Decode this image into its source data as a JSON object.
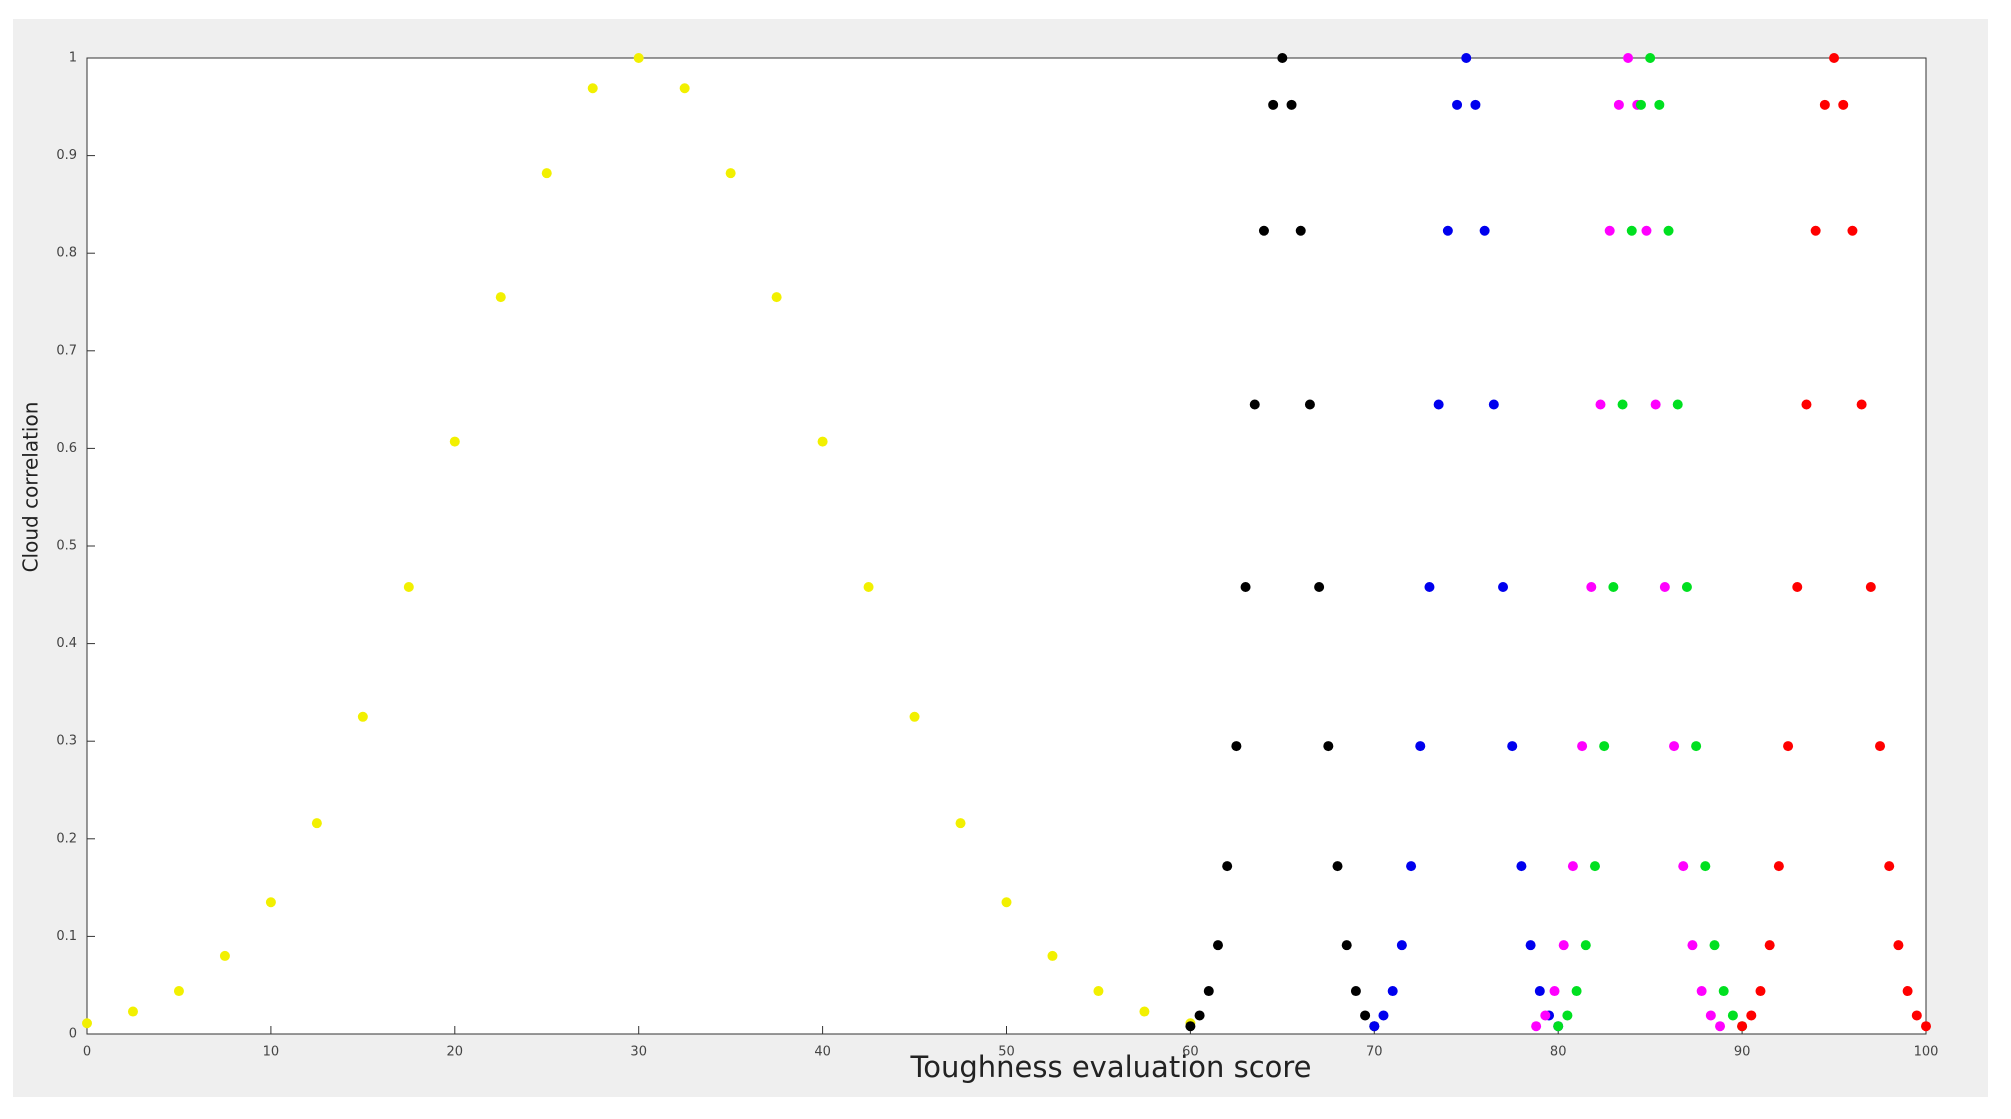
{
  "chart_data": {
    "type": "scatter",
    "xlabel": "Toughness evaluation score",
    "ylabel": "Cloud correlation",
    "xlim": [
      0,
      100
    ],
    "xticks": [
      0,
      10,
      20,
      30,
      40,
      50,
      60,
      70,
      80,
      90,
      100
    ],
    "ylim": [
      0,
      1
    ],
    "yticks": [
      0,
      0.1,
      0.2,
      0.3,
      0.4,
      0.5,
      0.6,
      0.7,
      0.8,
      0.9,
      1
    ],
    "grid": false,
    "series": [
      {
        "color": "#f2f000",
        "x": [
          0,
          2.5,
          5,
          7.5,
          10,
          12.5,
          15,
          17.5,
          20,
          22.5,
          25,
          27.5,
          30,
          32.5,
          35,
          37.5,
          40,
          42.5,
          45,
          47.5,
          50,
          52.5,
          55,
          57.5,
          60
        ],
        "y": [
          0.011,
          0.023,
          0.044,
          0.08,
          0.135,
          0.216,
          0.325,
          0.458,
          0.607,
          0.755,
          0.882,
          0.969,
          1,
          0.969,
          0.882,
          0.755,
          0.607,
          0.458,
          0.325,
          0.216,
          0.135,
          0.08,
          0.044,
          0.023,
          0.011
        ]
      },
      {
        "color": "#000000",
        "x": [
          60,
          60.5,
          61,
          61.5,
          62,
          62.5,
          63,
          63.5,
          64,
          64.5,
          65,
          65.5,
          66,
          66.5,
          67,
          67.5,
          68,
          68.5,
          69,
          69.5,
          70
        ],
        "y": [
          0.008,
          0.019,
          0.044,
          0.091,
          0.172,
          0.295,
          0.458,
          0.645,
          0.823,
          0.952,
          1,
          0.952,
          0.823,
          0.645,
          0.458,
          0.295,
          0.172,
          0.091,
          0.044,
          0.019,
          0.008
        ]
      },
      {
        "color": "#0000ee",
        "x": [
          70,
          70.5,
          71,
          71.5,
          72,
          72.5,
          73,
          73.5,
          74,
          74.5,
          75,
          75.5,
          76,
          76.5,
          77,
          77.5,
          78,
          78.5,
          79,
          79.5,
          80
        ],
        "y": [
          0.008,
          0.019,
          0.044,
          0.091,
          0.172,
          0.295,
          0.458,
          0.645,
          0.823,
          0.952,
          1,
          0.952,
          0.823,
          0.645,
          0.458,
          0.295,
          0.172,
          0.091,
          0.044,
          0.019,
          0.008
        ]
      },
      {
        "color": "#ff00ff",
        "x": [
          78.8,
          79.3,
          79.8,
          80.3,
          80.8,
          81.3,
          81.8,
          82.3,
          82.8,
          83.3,
          83.8,
          84.3,
          84.8,
          85.3,
          85.8,
          86.3,
          86.8,
          87.3,
          87.8,
          88.3,
          88.8
        ],
        "y": [
          0.008,
          0.019,
          0.044,
          0.091,
          0.172,
          0.295,
          0.458,
          0.645,
          0.823,
          0.952,
          1,
          0.952,
          0.823,
          0.645,
          0.458,
          0.295,
          0.172,
          0.091,
          0.044,
          0.019,
          0.008
        ]
      },
      {
        "color": "#00e020",
        "x": [
          80,
          80.5,
          81,
          81.5,
          82,
          82.5,
          83,
          83.5,
          84,
          84.5,
          85,
          85.5,
          86,
          86.5,
          87,
          87.5,
          88,
          88.5,
          89,
          89.5,
          90
        ],
        "y": [
          0.008,
          0.019,
          0.044,
          0.091,
          0.172,
          0.295,
          0.458,
          0.645,
          0.823,
          0.952,
          1,
          0.952,
          0.823,
          0.645,
          0.458,
          0.295,
          0.172,
          0.091,
          0.044,
          0.019,
          0.008
        ]
      },
      {
        "color": "#ff0000",
        "x": [
          90,
          90.5,
          91,
          91.5,
          92,
          92.5,
          93,
          93.5,
          94,
          94.5,
          95,
          95.5,
          96,
          96.5,
          97,
          97.5,
          98,
          98.5,
          99,
          99.5,
          100
        ],
        "y": [
          0.008,
          0.019,
          0.044,
          0.091,
          0.172,
          0.295,
          0.458,
          0.645,
          0.823,
          0.952,
          1,
          0.952,
          0.823,
          0.645,
          0.458,
          0.295,
          0.172,
          0.091,
          0.044,
          0.019,
          0.008
        ]
      }
    ]
  }
}
